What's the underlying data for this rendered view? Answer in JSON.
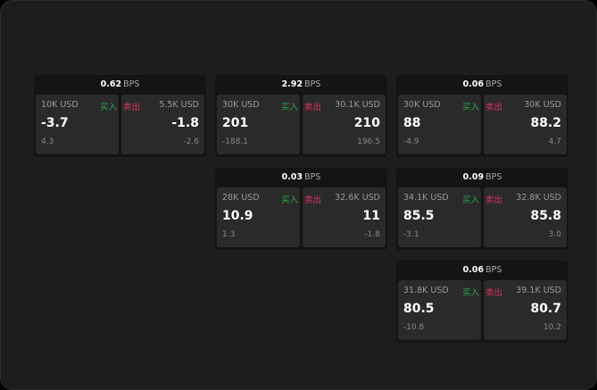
{
  "bps_unit": "BPS",
  "buy_label": "买入",
  "sell_label": "卖出",
  "colors": {
    "buy": "#2aa84a",
    "sell": "#e0315f"
  },
  "quotes": [
    {
      "bps": "0.62",
      "bid_qty": "10K USD",
      "bid": "-3.7",
      "bid_chg": "4.3",
      "ask_qty": "5.5K USD",
      "ask": "-1.8",
      "ask_chg": "-2.6"
    },
    {
      "bps": "2.92",
      "bid_qty": "30K USD",
      "bid": "201",
      "bid_chg": "-188.1",
      "ask_qty": "30.1K USD",
      "ask": "210",
      "ask_chg": "196.5"
    },
    {
      "bps": "0.06",
      "bid_qty": "30K USD",
      "bid": "88",
      "bid_chg": "-4.9",
      "ask_qty": "30K USD",
      "ask": "88.2",
      "ask_chg": "4.7"
    },
    {
      "bps": "0.03",
      "bid_qty": "28K USD",
      "bid": "10.9",
      "bid_chg": "1.3",
      "ask_qty": "32.6K USD",
      "ask": "11",
      "ask_chg": "-1.8"
    },
    {
      "bps": "0.09",
      "bid_qty": "34.1K USD",
      "bid": "85.5",
      "bid_chg": "-3.1",
      "ask_qty": "32.8K USD",
      "ask": "85.8",
      "ask_chg": "3.0"
    },
    {
      "bps": "0.06",
      "bid_qty": "31.8K USD",
      "bid": "80.5",
      "bid_chg": "-10.8",
      "ask_qty": "39.1K USD",
      "ask": "80.7",
      "ask_chg": "10.2"
    }
  ]
}
